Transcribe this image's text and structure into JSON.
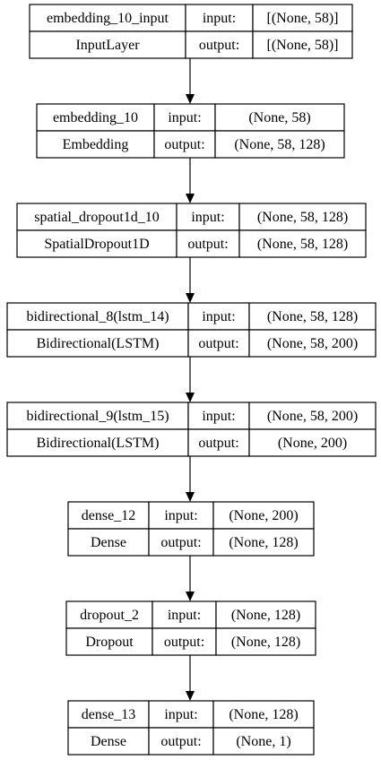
{
  "diagram": {
    "type": "keras-model-plot",
    "layers": [
      {
        "name": "embedding_10_input",
        "class": "InputLayer",
        "input_label": "input:",
        "output_label": "output:",
        "input_shape": "[(None, 58)]",
        "output_shape": "[(None, 58)]"
      },
      {
        "name": "embedding_10",
        "class": "Embedding",
        "input_label": "input:",
        "output_label": "output:",
        "input_shape": "(None, 58)",
        "output_shape": "(None, 58, 128)"
      },
      {
        "name": "spatial_dropout1d_10",
        "class": "SpatialDropout1D",
        "input_label": "input:",
        "output_label": "output:",
        "input_shape": "(None, 58, 128)",
        "output_shape": "(None, 58, 128)"
      },
      {
        "name": "bidirectional_8(lstm_14)",
        "class": "Bidirectional(LSTM)",
        "input_label": "input:",
        "output_label": "output:",
        "input_shape": "(None, 58, 128)",
        "output_shape": "(None, 58, 200)"
      },
      {
        "name": "bidirectional_9(lstm_15)",
        "class": "Bidirectional(LSTM)",
        "input_label": "input:",
        "output_label": "output:",
        "input_shape": "(None, 58, 200)",
        "output_shape": "(None, 200)"
      },
      {
        "name": "dense_12",
        "class": "Dense",
        "input_label": "input:",
        "output_label": "output:",
        "input_shape": "(None, 200)",
        "output_shape": "(None, 128)"
      },
      {
        "name": "dropout_2",
        "class": "Dropout",
        "input_label": "input:",
        "output_label": "output:",
        "input_shape": "(None, 128)",
        "output_shape": "(None, 128)"
      },
      {
        "name": "dense_13",
        "class": "Dense",
        "input_label": "input:",
        "output_label": "output:",
        "input_shape": "(None, 128)",
        "output_shape": "(None, 1)"
      }
    ]
  }
}
